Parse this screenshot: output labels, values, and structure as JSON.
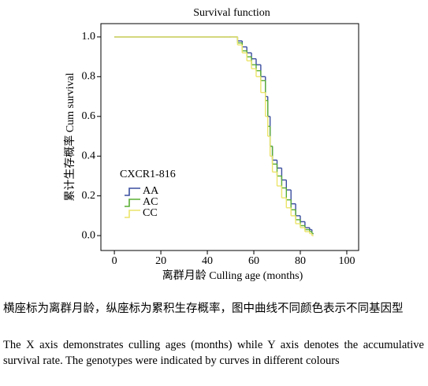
{
  "chart_data": {
    "type": "step",
    "title": "Survival function",
    "x_label": "离群月龄 Culling age (months)",
    "y_label": "累计生存概率 Cum survival",
    "legend_title": "CXCR1-816",
    "x": [
      0,
      50,
      53,
      55,
      57,
      59,
      61,
      63,
      65,
      66,
      67,
      68,
      70,
      72,
      74,
      76,
      78,
      80,
      82,
      84,
      85
    ],
    "series": [
      {
        "name": "AA",
        "color": "#3a4d9e",
        "values": [
          1,
          1,
          0.98,
          0.95,
          0.92,
          0.89,
          0.86,
          0.8,
          0.7,
          0.6,
          0.45,
          0.38,
          0.34,
          0.28,
          0.23,
          0.16,
          0.1,
          0.07,
          0.04,
          0.03,
          0.01
        ]
      },
      {
        "name": "AC",
        "color": "#5aae34",
        "values": [
          1,
          1,
          0.97,
          0.93,
          0.9,
          0.86,
          0.83,
          0.78,
          0.68,
          0.55,
          0.45,
          0.36,
          0.3,
          0.24,
          0.18,
          0.13,
          0.08,
          0.05,
          0.03,
          0.02,
          0.01
        ]
      },
      {
        "name": "CC",
        "color": "#ece46a",
        "values": [
          1,
          1,
          0.96,
          0.92,
          0.88,
          0.84,
          0.8,
          0.72,
          0.6,
          0.5,
          0.4,
          0.32,
          0.25,
          0.19,
          0.14,
          0.1,
          0.06,
          0.04,
          0.02,
          0.01,
          0
        ]
      }
    ],
    "xlim": [
      -5.8,
      105.1
    ],
    "xticks": [
      0,
      20,
      40,
      60,
      80,
      100
    ],
    "ylim": [
      -0.075,
      1.067
    ],
    "yticks": [
      {
        "value": 0,
        "label": "0.0"
      },
      0.2,
      0.4,
      0.6,
      0.8,
      {
        "value": 1,
        "label": "1.0"
      }
    ],
    "grid": false
  },
  "caption_zh": "横座标为离群月龄，纵座标为累积生存概率，图中曲线不同颜色表示不同基因型",
  "caption_en": "The X axis demonstrates culling ages (months) while Y axis denotes the accumulative survival rate. The genotypes were indicated by curves in different colours"
}
